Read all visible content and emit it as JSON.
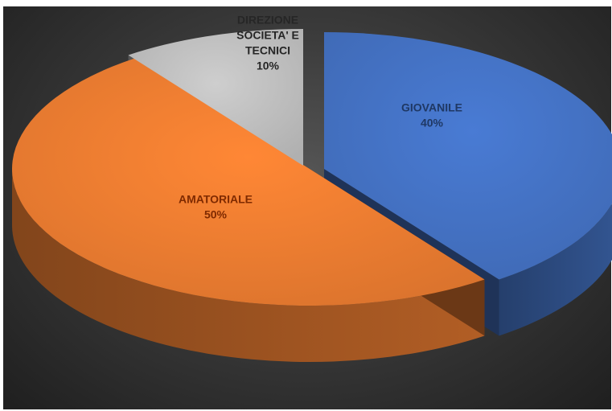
{
  "chart_data": {
    "type": "pie",
    "title": "",
    "slices": [
      {
        "label_lines": [
          "GIOVANILE"
        ],
        "value": 40,
        "percent_label": "40%",
        "color": "#4472C4",
        "text_color": "#1F3864"
      },
      {
        "label_lines": [
          "AMATORIALE"
        ],
        "value": 50,
        "percent_label": "50%",
        "color": "#ED7D31",
        "text_color": "#7F2A00"
      },
      {
        "label_lines": [
          "DIREZIONE",
          "SOCIETA' E",
          "TECNICI"
        ],
        "value": 10,
        "percent_label": "10%",
        "color": "#BFBFBF",
        "text_color": "#262626"
      }
    ]
  }
}
